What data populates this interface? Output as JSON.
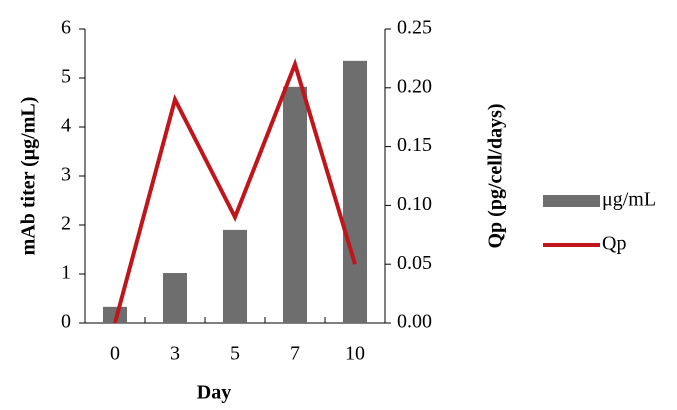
{
  "chart_data": {
    "type": "bar",
    "categories": [
      "0",
      "3",
      "5",
      "7",
      "10"
    ],
    "x_label": "Day",
    "y_label": "mAb titer (μg/mL)",
    "y2_label": "Qp (pg/cell/days)",
    "series": [
      {
        "name": "μg/mL",
        "type": "bar",
        "color": "#6e6e6e",
        "values": [
          0.33,
          1.02,
          1.9,
          4.82,
          5.35
        ]
      },
      {
        "name": "Qp",
        "type": "line",
        "axis": "y2",
        "color": "#c0161b",
        "values": [
          0,
          0.19,
          0.09,
          0.22,
          0.05
        ]
      }
    ],
    "ylim": [
      0,
      6
    ],
    "yticks": [
      0,
      1,
      2,
      3,
      4,
      5,
      6
    ],
    "y2lim": [
      0,
      0.25
    ],
    "y2ticks": [
      {
        "value": 0,
        "label": "0.00"
      },
      {
        "value": 0.05,
        "label": "0.05"
      },
      {
        "value": 0.1,
        "label": "0.10"
      },
      {
        "value": 0.15,
        "label": "0.15"
      },
      {
        "value": 0.2,
        "label": "0.20"
      },
      {
        "value": 0.25,
        "label": "0.25"
      }
    ],
    "legend": "right"
  }
}
